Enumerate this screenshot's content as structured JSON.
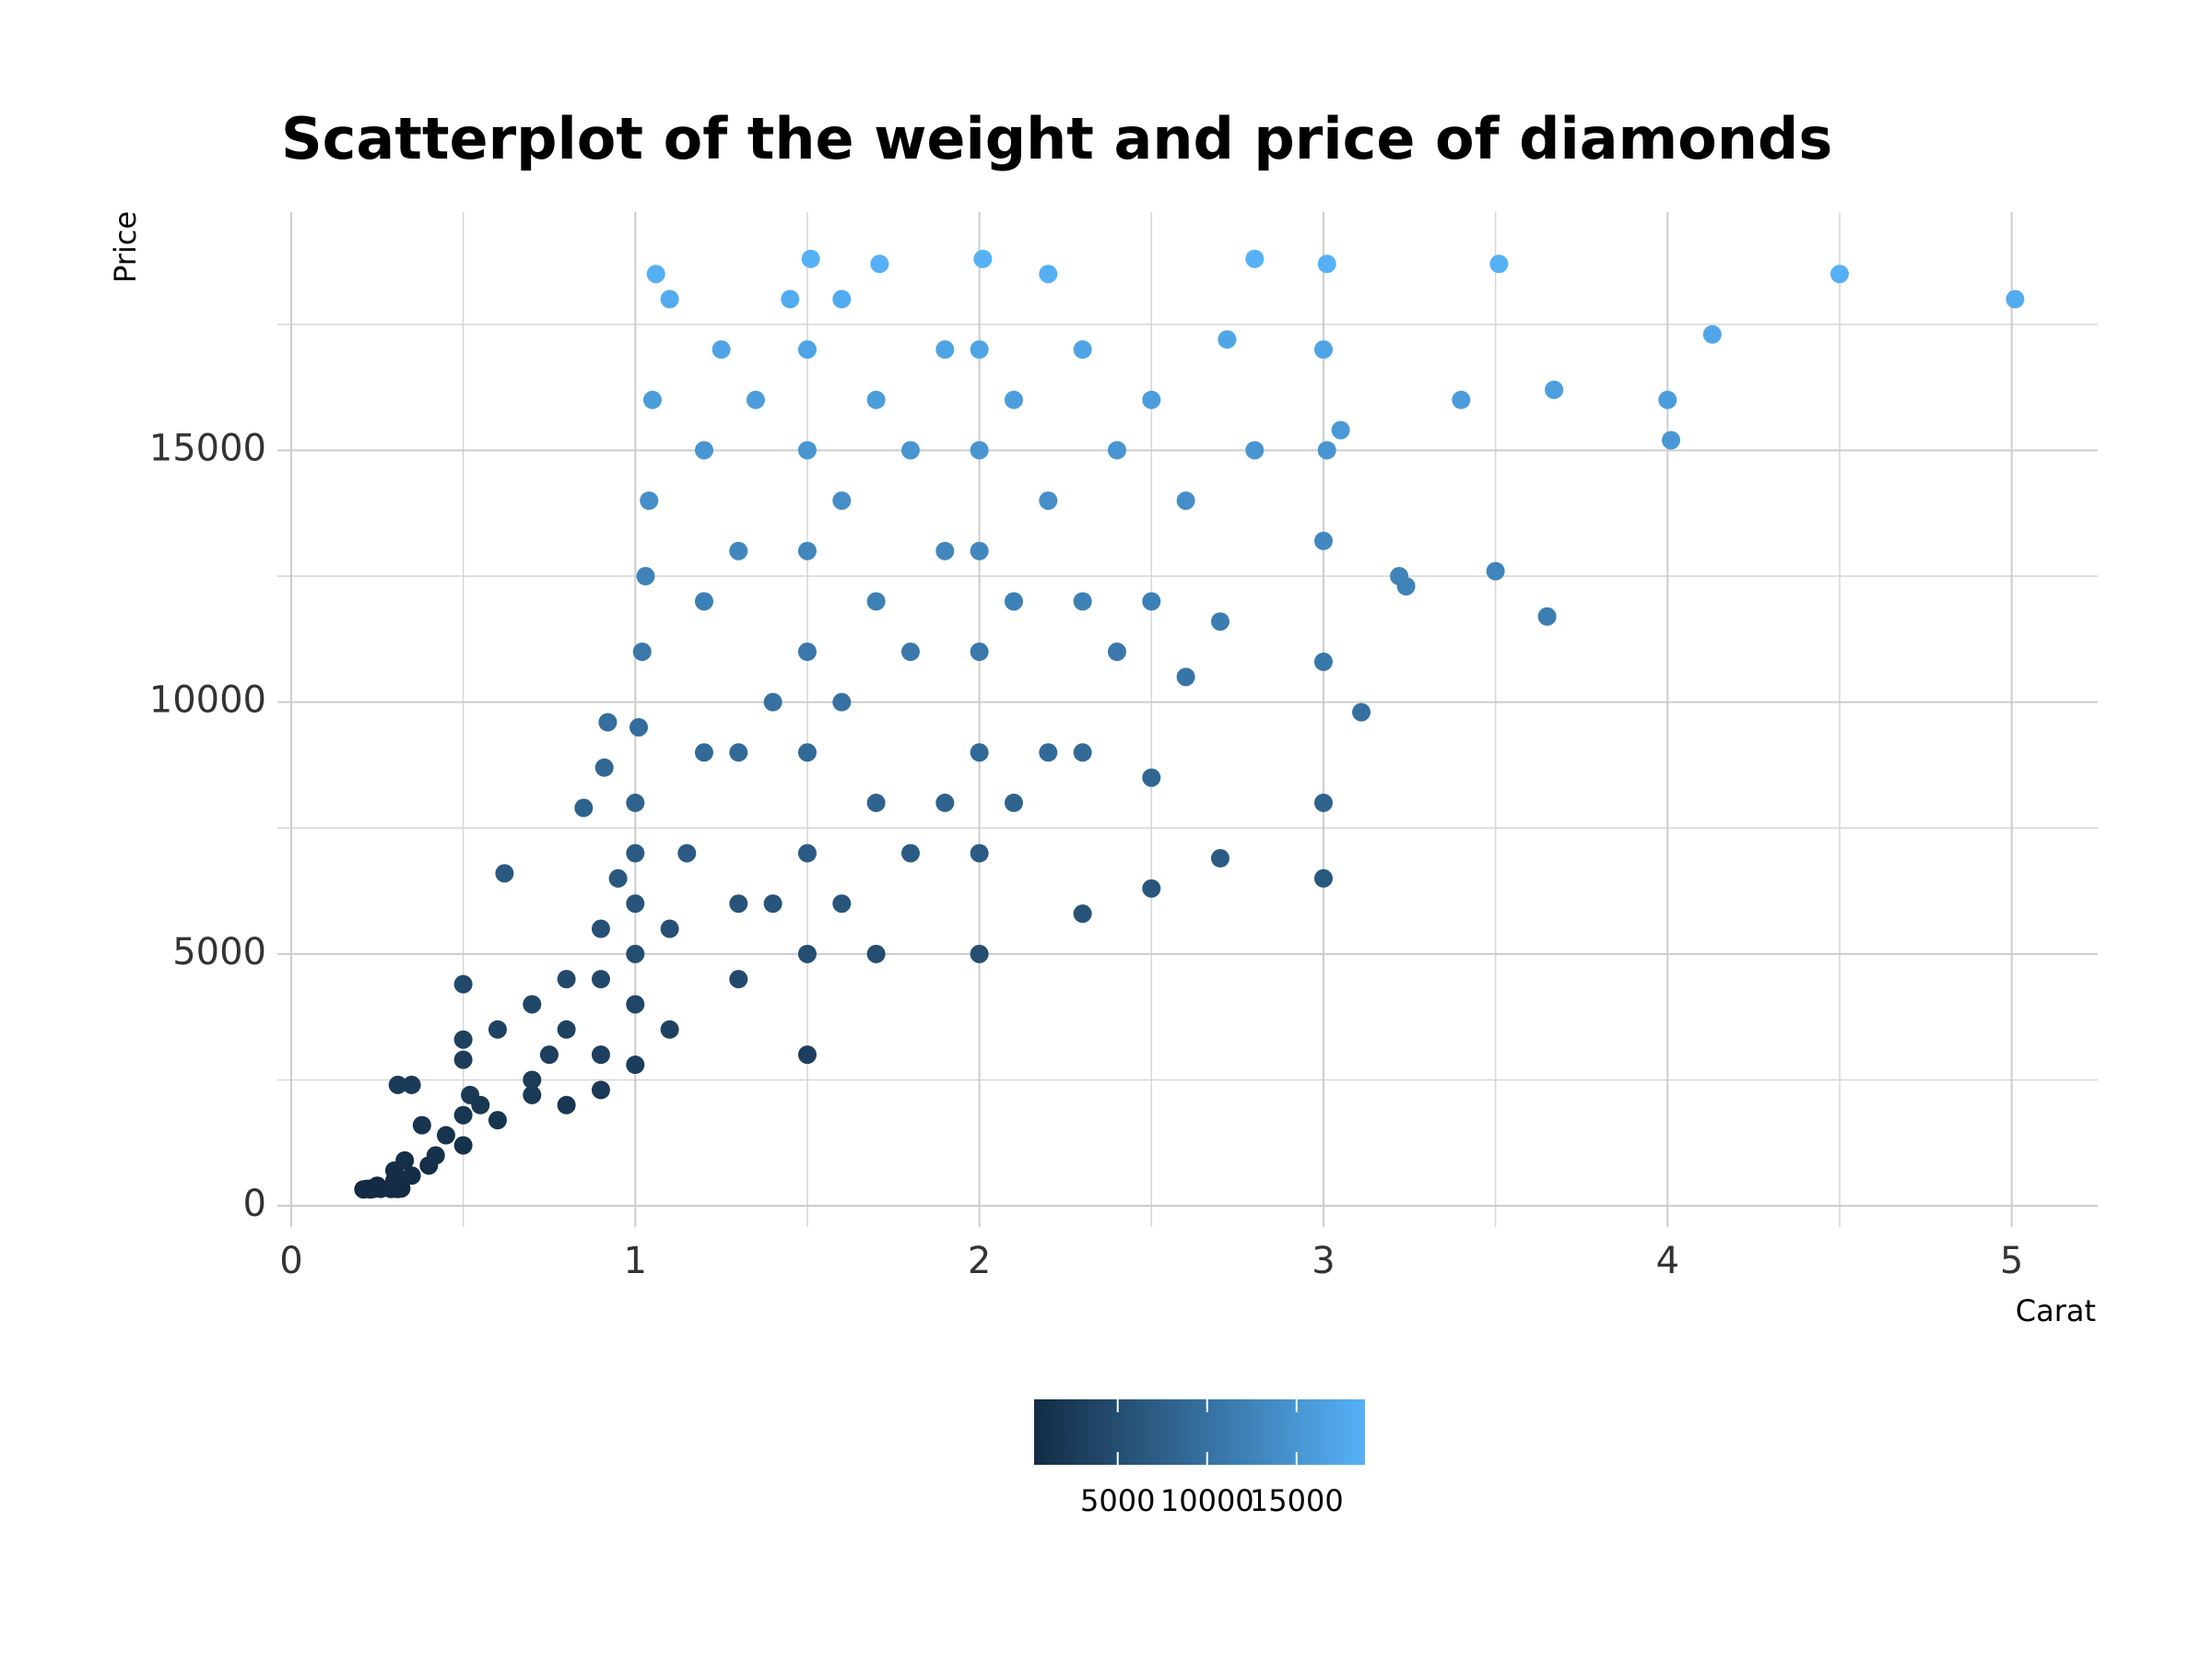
{
  "chart_data": {
    "type": "scatter",
    "title": "Scatterplot of the weight and price of diamonds",
    "x_label": "Carat",
    "y_label": "Price",
    "x": [
      0.23,
      0.21,
      0.23,
      0.29,
      0.31,
      0.24,
      0.26,
      0.22,
      0.3,
      0.23,
      0.32,
      0.25,
      0.3,
      0.35,
      0.3,
      0.4,
      0.33,
      0.42,
      0.5,
      0.45,
      0.38,
      0.5,
      0.55,
      0.6,
      0.7,
      0.52,
      0.31,
      0.35,
      0.5,
      0.5,
      0.5,
      0.6,
      0.62,
      0.7,
      0.7,
      0.75,
      0.8,
      0.8,
      0.8,
      0.9,
      0.9,
      0.9,
      0.9,
      0.85,
      0.91,
      0.92,
      0.95,
      1.0,
      1.0,
      1.0,
      1.0,
      1.0,
      1.0,
      1.01,
      1.02,
      1.03,
      1.04,
      1.05,
      1.06,
      1.1,
      1.1,
      1.1,
      1.15,
      1.2,
      1.2,
      1.2,
      1.25,
      1.3,
      1.3,
      1.3,
      1.3,
      1.35,
      1.4,
      1.4,
      1.45,
      1.5,
      1.5,
      1.5,
      1.5,
      1.5,
      1.5,
      1.5,
      1.5,
      1.51,
      1.6,
      1.6,
      1.6,
      1.6,
      1.7,
      1.7,
      1.7,
      1.7,
      1.71,
      1.8,
      1.8,
      1.8,
      1.9,
      1.9,
      1.9,
      2.0,
      2.0,
      2.0,
      2.0,
      2.0,
      2.0,
      2.0,
      2.01,
      2.1,
      2.1,
      2.1,
      2.2,
      2.2,
      2.2,
      2.3,
      2.3,
      2.3,
      2.3,
      2.4,
      2.4,
      2.5,
      2.5,
      2.5,
      2.5,
      2.6,
      2.6,
      2.7,
      2.7,
      2.72,
      2.8,
      2.8,
      3.0,
      3.0,
      3.0,
      3.0,
      3.01,
      3.0,
      3.01,
      3.05,
      3.11,
      3.22,
      3.24,
      3.4,
      3.5,
      3.51,
      3.65,
      3.67,
      4.0,
      4.01,
      4.13,
      4.5,
      5.01
    ],
    "y": [
      326,
      326,
      327,
      334,
      335,
      336,
      337,
      337,
      339,
      340,
      345,
      400,
      500,
      600,
      700,
      800,
      900,
      1000,
      1200,
      1400,
      1600,
      1800,
      2000,
      1700,
      2500,
      2200,
      2400,
      2400,
      2900,
      3300,
      4400,
      3500,
      6600,
      4000,
      2200,
      3000,
      3500,
      4500,
      2000,
      3000,
      4500,
      5500,
      2300,
      7900,
      8700,
      9600,
      6500,
      2800,
      4000,
      5000,
      6000,
      7000,
      8000,
      9500,
      11000,
      12500,
      14000,
      16000,
      18500,
      18000,
      3500,
      5500,
      7000,
      9000,
      12000,
      15000,
      17000,
      4500,
      6000,
      9000,
      13000,
      16000,
      6000,
      10000,
      18000,
      3000,
      5000,
      7000,
      9000,
      11000,
      13000,
      15000,
      17000,
      18800,
      6000,
      10000,
      14000,
      18000,
      5000,
      8000,
      12000,
      16000,
      18700,
      7000,
      11000,
      15000,
      8000,
      13000,
      17000,
      5000,
      7000,
      9000,
      11000,
      13000,
      15000,
      17000,
      18800,
      8000,
      12000,
      16000,
      9000,
      14000,
      18500,
      5800,
      9000,
      12000,
      17000,
      11000,
      15000,
      6300,
      8500,
      12000,
      16000,
      10500,
      14000,
      6900,
      11600,
      17200,
      15000,
      18800,
      6500,
      8000,
      10800,
      13200,
      15000,
      17000,
      18700,
      15400,
      9800,
      12500,
      12300,
      16000,
      12600,
      18700,
      11700,
      16200,
      16000,
      15200,
      17300,
      18500,
      18000
    ],
    "xlim": [
      -0.04,
      5.25
    ],
    "xticks": [
      0,
      1,
      2,
      3,
      4,
      5
    ],
    "x_minor_ticks": [
      0.5,
      1.5,
      2.5,
      3.5,
      4.5
    ],
    "ylim": [
      -420,
      19730
    ],
    "yticks": [
      0,
      5000,
      10000,
      15000
    ],
    "y_minor_ticks": [
      2500,
      7500,
      12500,
      17500
    ],
    "grid": true,
    "color_scale": {
      "low": "#132B43",
      "high": "#56B1F7",
      "lim": [
        326,
        18823
      ],
      "ticks": [
        5000,
        10000,
        15000
      ]
    }
  }
}
